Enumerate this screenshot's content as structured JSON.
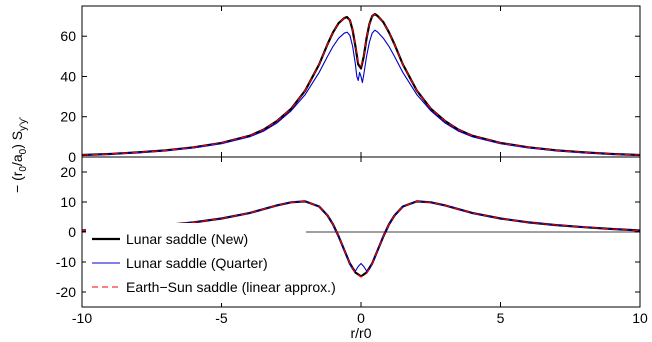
{
  "chart_data": [
    {
      "type": "line",
      "panel": "top",
      "xlim": [
        -10,
        10
      ],
      "ylim": [
        0,
        75
      ],
      "yticks": [
        0,
        20,
        40,
        60
      ],
      "xticks": [
        -10,
        -5,
        0,
        5,
        10
      ],
      "show_xtick_labels": false,
      "series": [
        {
          "name": "Lunar saddle (New)",
          "color": "#000000",
          "style": "solid",
          "x": [
            -10,
            -9,
            -8,
            -7,
            -6,
            -5,
            -4,
            -3.5,
            -3,
            -2.5,
            -2,
            -1.5,
            -1.2,
            -1,
            -0.8,
            -0.6,
            -0.5,
            -0.4,
            -0.3,
            -0.2,
            -0.1,
            0,
            0.1,
            0.2,
            0.3,
            0.4,
            0.5,
            0.6,
            0.8,
            1,
            1.2,
            1.5,
            2,
            2.5,
            3,
            3.5,
            4,
            5,
            6,
            7,
            8,
            9,
            10
          ],
          "y": [
            1,
            1.5,
            2.3,
            3.3,
            4.8,
            7,
            10.5,
            13.5,
            18,
            24,
            33,
            46,
            56,
            62,
            66.5,
            69,
            69.5,
            68,
            63,
            55,
            46,
            44,
            50,
            59,
            66,
            70,
            71,
            70,
            67,
            62,
            56,
            46,
            33,
            24,
            18,
            13.5,
            10.5,
            7,
            4.8,
            3.3,
            2.3,
            1.5,
            1
          ]
        },
        {
          "name": "Lunar saddle (Quarter)",
          "color": "#0000cc",
          "style": "solid",
          "x": [
            -10,
            -9,
            -8,
            -7,
            -6,
            -5,
            -4,
            -3.5,
            -3,
            -2.5,
            -2,
            -1.5,
            -1.2,
            -1,
            -0.8,
            -0.6,
            -0.5,
            -0.4,
            -0.3,
            -0.2,
            -0.15,
            -0.1,
            -0.05,
            0,
            0.05,
            0.1,
            0.2,
            0.3,
            0.4,
            0.5,
            0.6,
            0.8,
            1,
            1.2,
            1.5,
            2,
            2.5,
            3,
            3.5,
            4,
            5,
            6,
            7,
            8,
            9,
            10
          ],
          "y": [
            1,
            1.4,
            2.1,
            3.1,
            4.5,
            6.6,
            10,
            12.8,
            17,
            23,
            31,
            42,
            50,
            55,
            59,
            61.5,
            62,
            60.5,
            55,
            46,
            40,
            38,
            42,
            40,
            37,
            41,
            50,
            57,
            61.5,
            63,
            62,
            59,
            55,
            50,
            42,
            31,
            23,
            17,
            12.8,
            10,
            6.6,
            4.5,
            3.1,
            2.1,
            1.4,
            1
          ]
        },
        {
          "name": "Earth−Sun saddle (linear approx.)",
          "color": "#ff0000",
          "style": "dashed",
          "x": [
            -10,
            -9,
            -8,
            -7,
            -6,
            -5,
            -4,
            -3.5,
            -3,
            -2.5,
            -2,
            -1.5,
            -1.2,
            -1,
            -0.8,
            -0.6,
            -0.5,
            -0.4,
            -0.3,
            -0.2,
            -0.1,
            0,
            0.1,
            0.2,
            0.3,
            0.4,
            0.5,
            0.6,
            0.8,
            1,
            1.2,
            1.5,
            2,
            2.5,
            3,
            3.5,
            4,
            5,
            6,
            7,
            8,
            9,
            10
          ],
          "y": [
            1,
            1.5,
            2.3,
            3.3,
            4.8,
            7,
            10.5,
            13.5,
            18,
            24,
            33,
            46,
            56,
            62,
            66.5,
            69,
            69.5,
            68,
            63,
            55,
            47,
            45,
            50,
            59,
            66,
            70,
            71,
            70,
            67,
            62,
            56,
            46,
            33,
            24,
            18,
            13.5,
            10.5,
            7,
            4.8,
            3.3,
            2.3,
            1.5,
            1
          ]
        }
      ]
    },
    {
      "type": "line",
      "panel": "bottom",
      "xlim": [
        -10,
        10
      ],
      "ylim": [
        -25,
        25
      ],
      "yticks": [
        -20,
        -10,
        0,
        10,
        20
      ],
      "xticks": [
        -10,
        -5,
        0,
        5,
        10
      ],
      "xlabel": "r/r0",
      "zero_line": true,
      "legend": "lower-left",
      "series": [
        {
          "name": "Lunar saddle (New)",
          "color": "#000000",
          "style": "solid",
          "x": [
            -10,
            -9,
            -8,
            -7,
            -6,
            -5,
            -4,
            -3.5,
            -3,
            -2.5,
            -2,
            -1.5,
            -1.2,
            -1,
            -0.8,
            -0.6,
            -0.4,
            -0.2,
            0,
            0.2,
            0.4,
            0.6,
            0.8,
            1,
            1.2,
            1.5,
            2,
            2.5,
            3,
            3.5,
            4,
            5,
            6,
            7,
            8,
            9,
            10
          ],
          "y": [
            0.5,
            1,
            1.6,
            2.3,
            3.2,
            4.5,
            6.3,
            7.6,
            8.9,
            9.9,
            10.2,
            8.5,
            5.5,
            2.5,
            -1.5,
            -6,
            -10.5,
            -13.5,
            -14.8,
            -13.5,
            -10.5,
            -6,
            -1.5,
            2.5,
            5.5,
            8.5,
            10.2,
            9.9,
            8.9,
            7.6,
            6.3,
            4.5,
            3.2,
            2.3,
            1.6,
            1,
            0.5
          ]
        },
        {
          "name": "Lunar saddle (Quarter)",
          "color": "#0000cc",
          "style": "solid",
          "x": [
            -10,
            -9,
            -8,
            -7,
            -6,
            -5,
            -4,
            -3.5,
            -3,
            -2.5,
            -2,
            -1.5,
            -1.2,
            -1,
            -0.8,
            -0.6,
            -0.4,
            -0.3,
            -0.2,
            -0.1,
            0,
            0.1,
            0.2,
            0.3,
            0.4,
            0.6,
            0.8,
            1,
            1.2,
            1.5,
            2,
            2.5,
            3,
            3.5,
            4,
            5,
            6,
            7,
            8,
            9,
            10
          ],
          "y": [
            0.5,
            1,
            1.6,
            2.3,
            3.2,
            4.5,
            6.3,
            7.6,
            8.9,
            9.9,
            10.2,
            8.5,
            5.5,
            2.5,
            -1.5,
            -6,
            -10.5,
            -12.5,
            -13,
            -11.5,
            -10.5,
            -11.5,
            -13,
            -12.5,
            -10.5,
            -6,
            -1.5,
            2.5,
            5.5,
            8.5,
            10.2,
            9.9,
            8.9,
            7.6,
            6.3,
            4.5,
            3.2,
            2.3,
            1.6,
            1,
            0.5
          ]
        },
        {
          "name": "Earth−Sun saddle (linear approx.)",
          "color": "#ff0000",
          "style": "dashed",
          "x": [
            -10,
            -9,
            -8,
            -7,
            -6,
            -5,
            -4,
            -3.5,
            -3,
            -2.5,
            -2,
            -1.5,
            -1.2,
            -1,
            -0.8,
            -0.6,
            -0.4,
            -0.2,
            0,
            0.2,
            0.4,
            0.6,
            0.8,
            1,
            1.2,
            1.5,
            2,
            2.5,
            3,
            3.5,
            4,
            5,
            6,
            7,
            8,
            9,
            10
          ],
          "y": [
            0.5,
            1,
            1.6,
            2.3,
            3.2,
            4.5,
            6.3,
            7.6,
            8.9,
            9.9,
            10.2,
            8.5,
            5.5,
            2.5,
            -1.5,
            -6,
            -10.5,
            -13.8,
            -15,
            -13.8,
            -10.5,
            -6,
            -1.5,
            2.5,
            5.5,
            8.5,
            10.2,
            9.9,
            8.9,
            7.6,
            6.3,
            4.5,
            3.2,
            2.3,
            1.6,
            1,
            0.5
          ]
        }
      ]
    }
  ],
  "ylabel": {
    "prefix": "− (r",
    "sub1": "0",
    "mid": "/a",
    "sub2": "0",
    "close": ") S",
    "sub3": "y'y'"
  }
}
